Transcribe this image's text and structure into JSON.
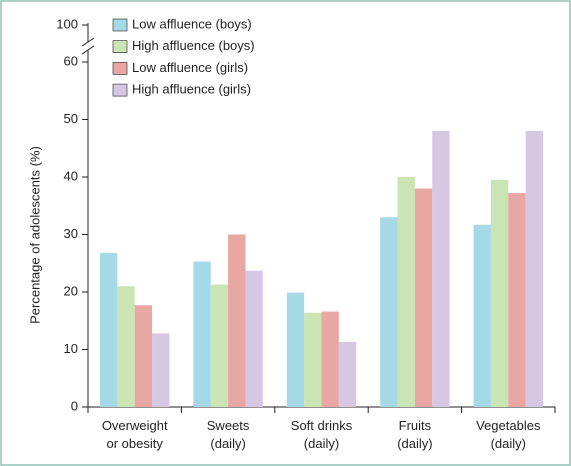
{
  "chart_data": {
    "type": "bar",
    "y_label": "Percentage of adolescents (%)",
    "categories": [
      [
        "Overweight",
        "or obesity"
      ],
      [
        "Sweets",
        "(daily)"
      ],
      [
        "Soft drinks",
        "(daily)"
      ],
      [
        "Fruits",
        "(daily)"
      ],
      [
        "Vegetables",
        "(daily)"
      ]
    ],
    "series": [
      {
        "name": "Low affluence (boys)",
        "color": "#a6d9e8",
        "values": [
          26.8,
          25.3,
          19.9,
          33,
          31.7
        ]
      },
      {
        "name": "High affluence (boys)",
        "color": "#cbe4b3",
        "values": [
          21,
          21.3,
          16.4,
          40,
          39.5
        ]
      },
      {
        "name": "Low affluence (girls)",
        "color": "#e8a7a2",
        "values": [
          17.7,
          30,
          16.6,
          38,
          37.2
        ]
      },
      {
        "name": "High affluence (girls)",
        "color": "#d6c7e3",
        "values": [
          12.8,
          23.7,
          11.3,
          48,
          48
        ]
      }
    ],
    "ylim": [
      0,
      100
    ],
    "axis_break": [
      60,
      100
    ],
    "yticks": [
      0,
      10,
      20,
      30,
      40,
      50,
      60,
      100
    ],
    "legend": "top-left"
  }
}
